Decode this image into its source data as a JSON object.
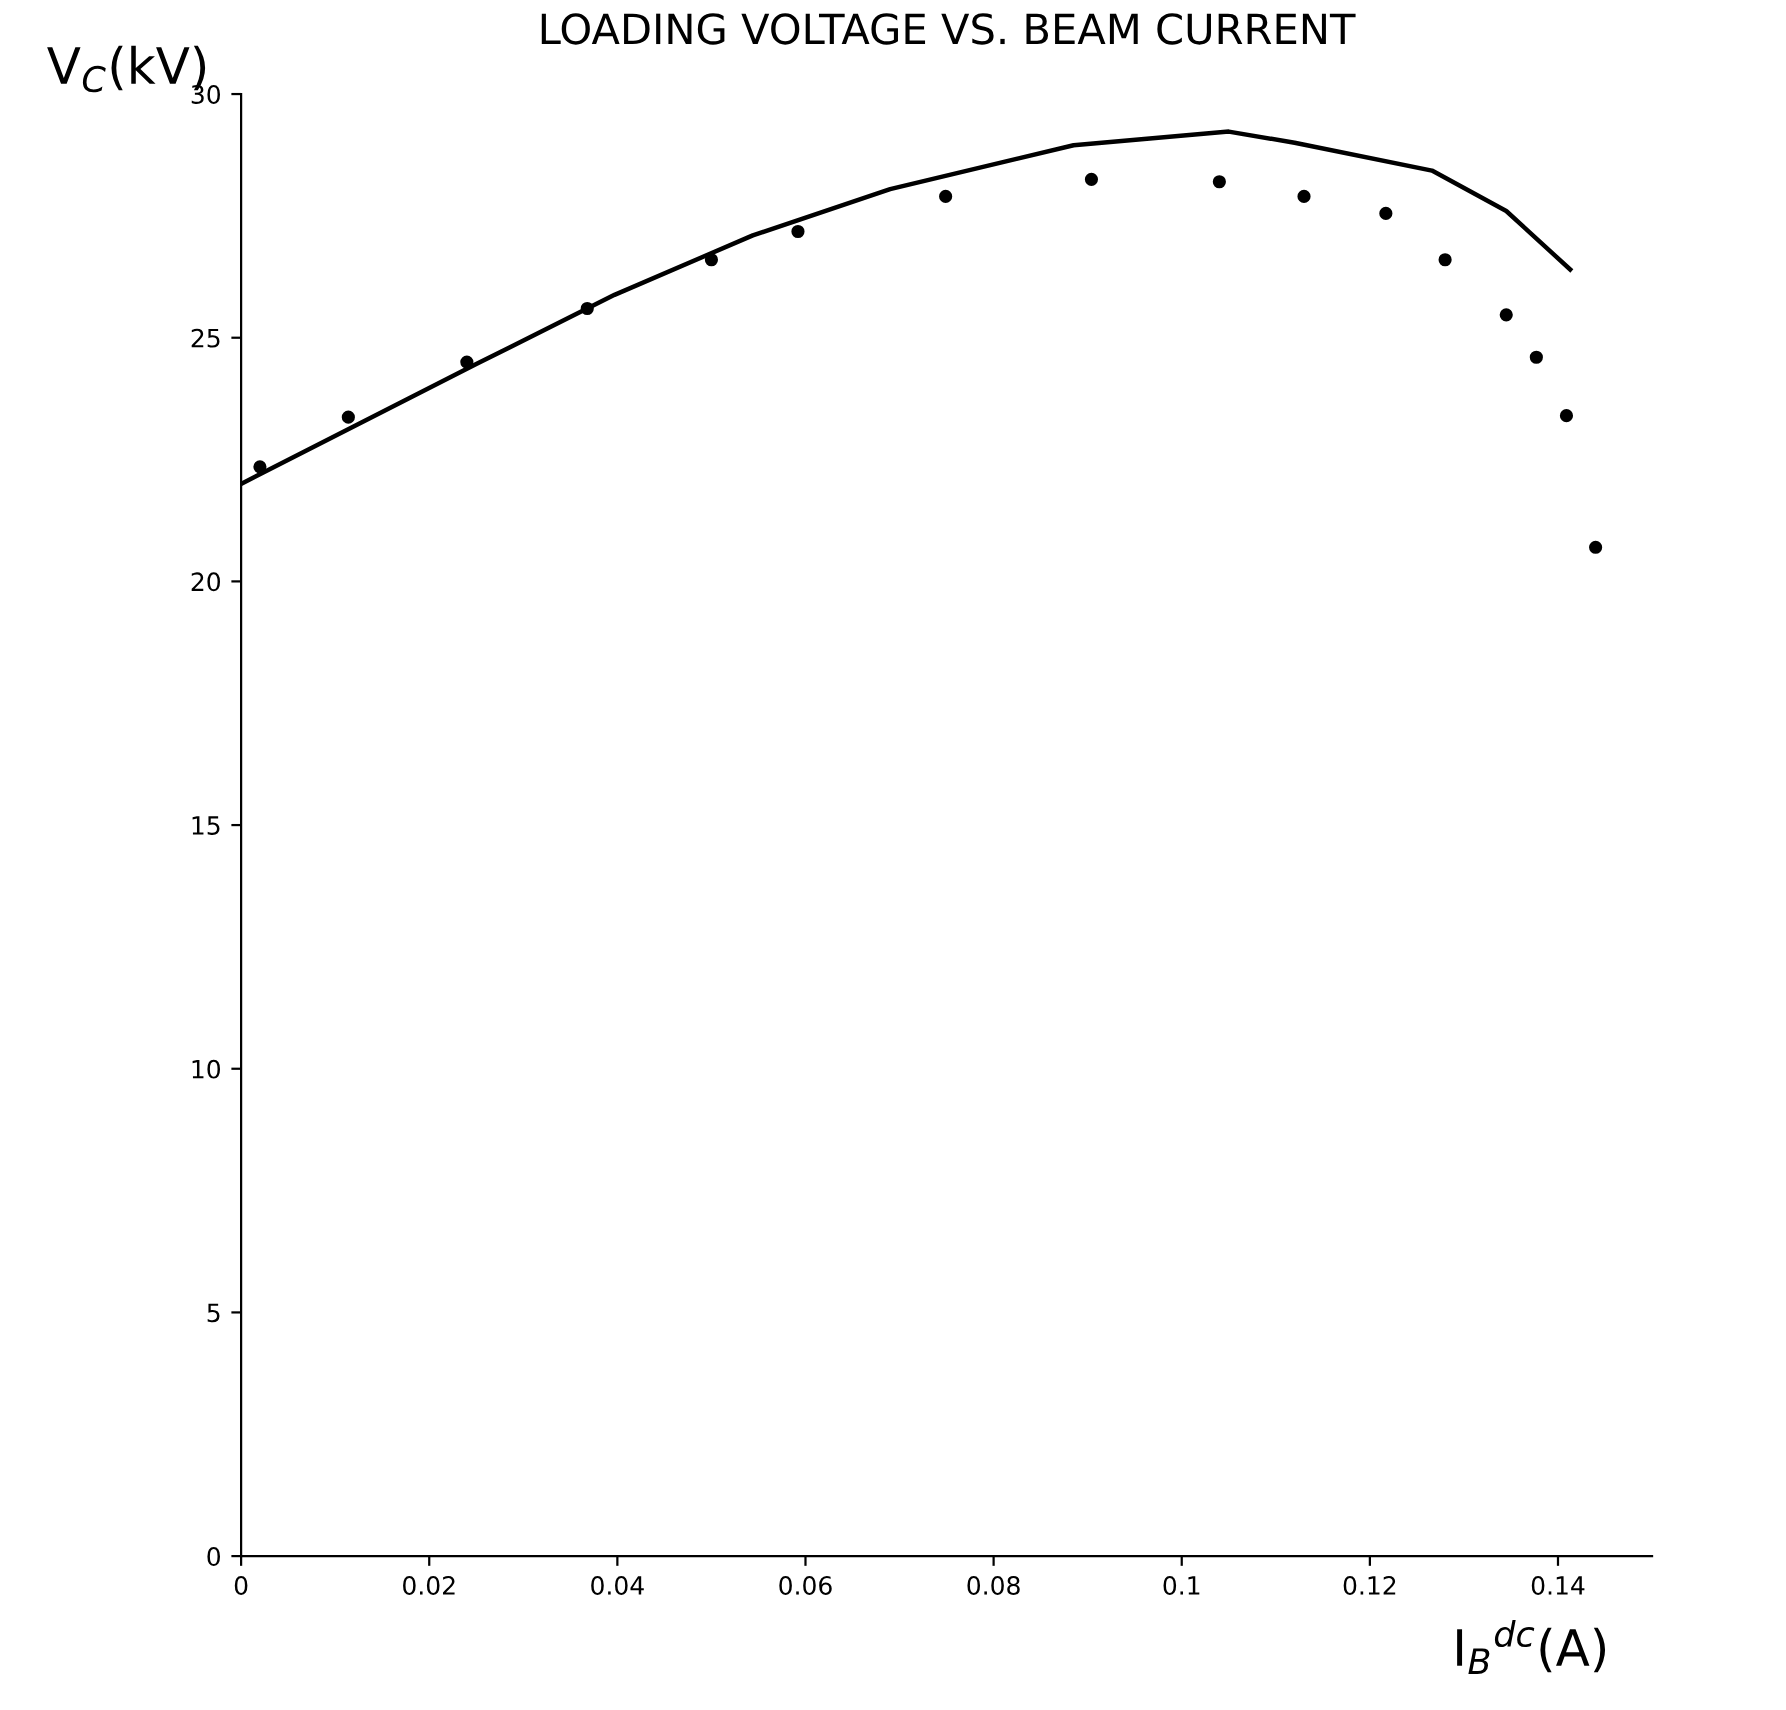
{
  "chart_data": {
    "type": "line",
    "title": "LOADING VOLTAGE VS. BEAM CURRENT",
    "xlabel": "I$_{B}$$^{dc}$(A)",
    "ylabel": "V$_{C}$(kV)",
    "xlim": [
      0,
      0.15
    ],
    "xticks": [
      0,
      0.02,
      0.04,
      0.06,
      0.08,
      0.1,
      0.12,
      0.14
    ],
    "ylim": [
      0,
      30
    ],
    "yticks": [
      0,
      5,
      10,
      15,
      20,
      25,
      30
    ],
    "grid": false,
    "legend": false,
    "series": [
      {
        "color": "#000000",
        "line_style": "solid",
        "marker": "none",
        "x": [
          0,
          0.025,
          0.0397,
          0.0544,
          0.069,
          0.0885,
          0.105,
          0.112,
          0.1266,
          0.1345,
          0.1413
        ],
        "values": [
          22.0,
          24.46,
          25.88,
          27.1,
          28.05,
          28.95,
          29.23,
          29.0,
          28.43,
          27.6,
          26.4
        ]
      },
      {
        "type": "scatter",
        "color": "#000000",
        "marker": "circle",
        "x": [
          0.002,
          0.0114,
          0.024,
          0.0368,
          0.05,
          0.0592,
          0.0749,
          0.0904,
          0.104,
          0.113,
          0.1217,
          0.128,
          0.1345,
          0.1377,
          0.1409,
          0.144
        ],
        "values": [
          22.35,
          23.37,
          24.5,
          25.6,
          26.6,
          27.18,
          27.9,
          28.25,
          28.2,
          27.9,
          27.55,
          26.6,
          25.47,
          24.6,
          23.4,
          20.7
        ]
      }
    ]
  }
}
